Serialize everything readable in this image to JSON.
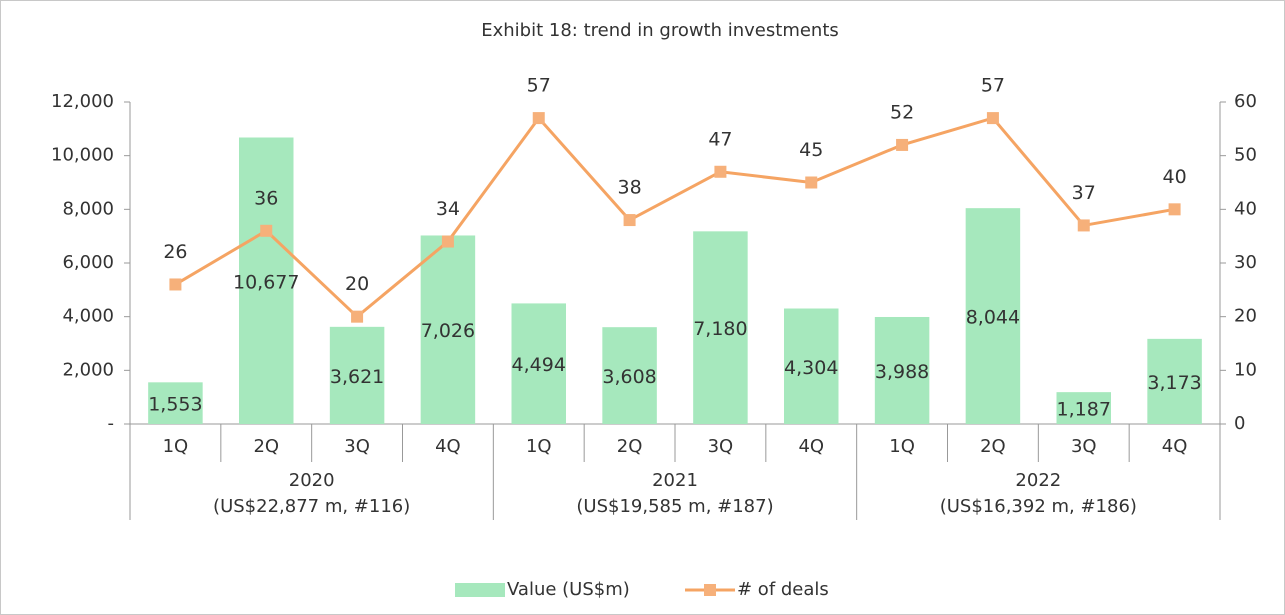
{
  "chart_data": {
    "type": "bar",
    "title": "Exhibit 18: trend in growth investments",
    "categories": [
      "1Q",
      "2Q",
      "3Q",
      "4Q",
      "1Q",
      "2Q",
      "3Q",
      "4Q",
      "1Q",
      "2Q",
      "3Q",
      "4Q"
    ],
    "groups": [
      {
        "label": "2020",
        "sub": "(US$22,877 m, #116)"
      },
      {
        "label": "2021",
        "sub": "(US$19,585 m, #187)"
      },
      {
        "label": "2022",
        "sub": "(US$16,392 m, #186)"
      }
    ],
    "series": [
      {
        "name": "Value (US$m)",
        "type": "bar",
        "color": "#a6e8bd",
        "values": [
          1553,
          10677,
          3621,
          7026,
          4494,
          3608,
          7180,
          4304,
          3988,
          8044,
          1187,
          3173
        ],
        "value_labels": [
          "1,553",
          "10,677",
          "3,621",
          "7,026",
          "4,494",
          "3,608",
          "7,180",
          "4,304",
          "3,988",
          "8,044",
          "1,187",
          "3,173"
        ]
      },
      {
        "name": "# of deals",
        "type": "line",
        "axis": "y2",
        "color": "#f5a463",
        "marker_color": "#f6b07a",
        "values": [
          26,
          36,
          20,
          34,
          57,
          38,
          47,
          45,
          52,
          57,
          37,
          40
        ]
      }
    ],
    "ylim": [
      0,
      12000
    ],
    "yticks": [
      {
        "value": 0,
        "label": "-"
      },
      {
        "value": 2000,
        "label": "2,000"
      },
      {
        "value": 4000,
        "label": "4,000"
      },
      {
        "value": 6000,
        "label": "6,000"
      },
      {
        "value": 8000,
        "label": "8,000"
      },
      {
        "value": 10000,
        "label": "10,000"
      },
      {
        "value": 12000,
        "label": "12,000"
      }
    ],
    "y2lim": [
      0,
      60
    ],
    "y2ticks": [
      0,
      10,
      20,
      30,
      40,
      50,
      60
    ],
    "legend": "bottom"
  }
}
